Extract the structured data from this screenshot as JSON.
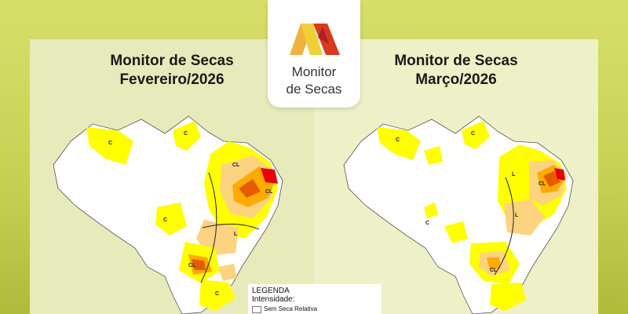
{
  "logo": {
    "line1": "Monitor",
    "line2": "de Secas",
    "icon": "m-logo-icon"
  },
  "maps": [
    {
      "title_line1": "Monitor de Secas",
      "title_line2": "Fevereiro/2026",
      "labels": [
        "C",
        "C",
        "CL",
        "CL",
        "C",
        "L",
        "CL",
        "C"
      ]
    },
    {
      "title_line1": "Monitor de Secas",
      "title_line2": "Março/2026",
      "labels": [
        "C",
        "C",
        "L",
        "CL",
        "L",
        "C",
        "CL"
      ]
    }
  ],
  "legend": {
    "title": "LEGENDA",
    "subtitle": "Intensidade:",
    "item1": "Sem Seca Relativa"
  },
  "colors": {
    "no_drought": "#ffffff",
    "fraca": "#ffff00",
    "moderada": "#fcd37f",
    "grave": "#ffaa00",
    "extrema": "#e55c00",
    "excepcional": "#e60000"
  }
}
